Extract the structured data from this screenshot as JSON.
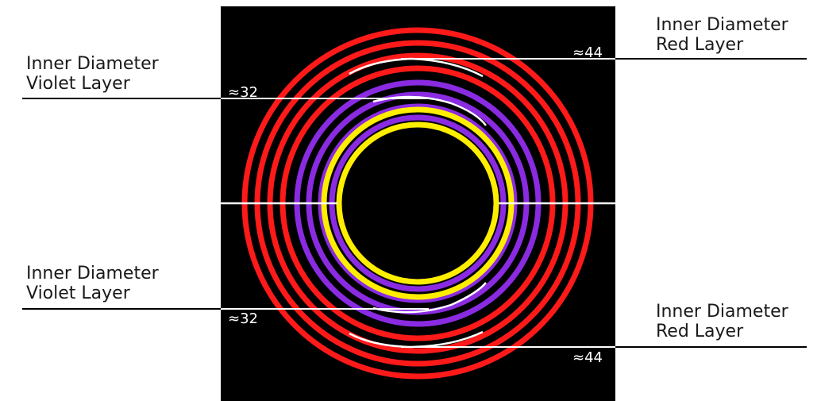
{
  "colors": {
    "background": "#ffffff",
    "panel": "#000000",
    "red_layer": "#ff1a1a",
    "violet_layer": "#8a2be2",
    "yellow_layer": "#ffee00",
    "leader_line": "#000000",
    "measure_line": "#ffffff"
  },
  "rings": {
    "red_count": 4,
    "violet_count": 4,
    "yellow_count": 2
  },
  "labels": {
    "top_left": {
      "line1": "Inner Diameter",
      "line2": "Violet Layer",
      "value": "≈32"
    },
    "top_right": {
      "line1": "Inner Diameter",
      "line2": "Red Layer",
      "value": "≈44"
    },
    "bottom_left": {
      "line1": "Inner Diameter",
      "line2": "Violet Layer",
      "value": "≈32"
    },
    "bottom_right": {
      "line1": "Inner Diameter",
      "line2": "Red Layer",
      "value": "≈44"
    }
  }
}
